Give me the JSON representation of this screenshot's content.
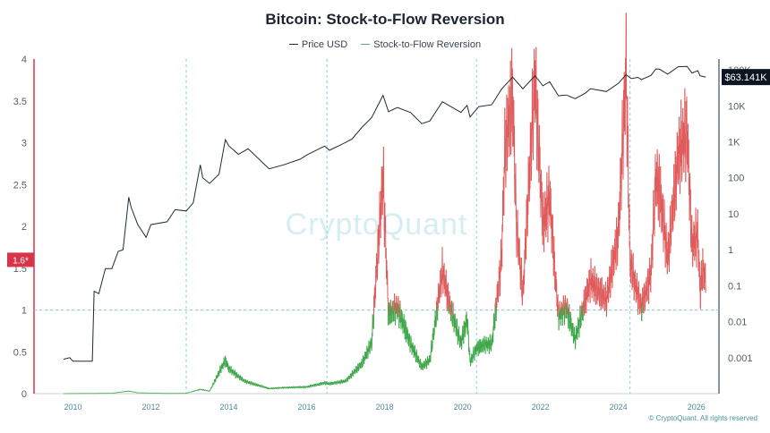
{
  "page": {
    "title": "Bitcoin: Stock-to-Flow Reversion",
    "footer": "© CryptoQuant. All rights reserved",
    "watermark": "CryptoQuant"
  },
  "legend": [
    {
      "label": "Price USD",
      "color": "#1d2b36"
    },
    {
      "label": "Stock-to-Flow Reversion",
      "color": "#5aa6a0"
    }
  ],
  "colors": {
    "price": "#1d2b36",
    "sf_above": "#e05c5c",
    "sf_below": "#3fa84a",
    "guide": "#86cfd8",
    "current_label_bg": "#0d1620",
    "marker_bg": "#d9344a",
    "watermark": "#d6eef2",
    "axis_text": "#555f66",
    "x_text": "#4d8a99"
  },
  "chart_data": {
    "type": "line",
    "title": "Bitcoin: Stock-to-Flow Reversion",
    "x_ticks": [
      "2010",
      "2012",
      "2014",
      "2016",
      "2018",
      "2020",
      "2022",
      "2024",
      "2026"
    ],
    "y_left": {
      "range": [
        0,
        4
      ],
      "ticks": [
        "0",
        "0.5",
        "1",
        "1.5",
        "2",
        "2.5",
        "3",
        "3.5",
        "4"
      ]
    },
    "y_right": {
      "scale": "log",
      "range": [
        0.0001,
        200000
      ],
      "ticks": [
        "0.001",
        "0.01",
        "0.1",
        "1",
        "10",
        "100",
        "1K",
        "10K",
        "100K"
      ]
    },
    "reference_line": 1,
    "marker_label": "1.6*",
    "current_price_label": "$63.141K",
    "halvings": [
      "2012-11-28",
      "2016-07-09",
      "2020-05-11",
      "2024-04-19"
    ],
    "series": [
      {
        "name": "Price USD",
        "axis": "right",
        "points": [
          [
            "2009-10-05",
            0.0009
          ],
          [
            "2009-12-01",
            0.001
          ],
          [
            "2010-01-01",
            0.0008
          ],
          [
            "2010-07-01",
            0.0008
          ],
          [
            "2010-07-18",
            0.07
          ],
          [
            "2010-09-01",
            0.06
          ],
          [
            "2010-11-01",
            0.3
          ],
          [
            "2011-01-01",
            0.3
          ],
          [
            "2011-03-01",
            0.9
          ],
          [
            "2011-04-15",
            1.0
          ],
          [
            "2011-06-08",
            29
          ],
          [
            "2011-07-01",
            15
          ],
          [
            "2011-09-01",
            5
          ],
          [
            "2011-11-18",
            2.2
          ],
          [
            "2012-01-01",
            5
          ],
          [
            "2012-06-01",
            6
          ],
          [
            "2012-08-16",
            13
          ],
          [
            "2012-11-28",
            12
          ],
          [
            "2013-02-01",
            20
          ],
          [
            "2013-04-09",
            230
          ],
          [
            "2013-05-01",
            100
          ],
          [
            "2013-07-05",
            70
          ],
          [
            "2013-10-01",
            125
          ],
          [
            "2013-11-30",
            1150
          ],
          [
            "2014-01-01",
            770
          ],
          [
            "2014-04-01",
            450
          ],
          [
            "2014-07-01",
            640
          ],
          [
            "2015-01-14",
            178
          ],
          [
            "2015-06-01",
            230
          ],
          [
            "2015-11-01",
            330
          ],
          [
            "2016-01-01",
            430
          ],
          [
            "2016-06-17",
            760
          ],
          [
            "2016-08-01",
            580
          ],
          [
            "2016-12-31",
            960
          ],
          [
            "2017-03-01",
            1200
          ],
          [
            "2017-06-01",
            2500
          ],
          [
            "2017-09-01",
            4700
          ],
          [
            "2017-12-17",
            19700
          ],
          [
            "2018-02-06",
            6900
          ],
          [
            "2018-05-01",
            9000
          ],
          [
            "2018-09-01",
            6500
          ],
          [
            "2018-12-15",
            3200
          ],
          [
            "2019-03-01",
            3800
          ],
          [
            "2019-06-26",
            13000
          ],
          [
            "2019-09-01",
            10000
          ],
          [
            "2019-12-17",
            6600
          ],
          [
            "2020-02-13",
            10300
          ],
          [
            "2020-03-12",
            4900
          ],
          [
            "2020-06-01",
            9500
          ],
          [
            "2020-10-01",
            10700
          ],
          [
            "2020-12-31",
            29000
          ],
          [
            "2021-04-14",
            63000
          ],
          [
            "2021-07-20",
            29800
          ],
          [
            "2021-11-10",
            69000
          ],
          [
            "2022-01-24",
            36000
          ],
          [
            "2022-03-28",
            47000
          ],
          [
            "2022-06-18",
            19000
          ],
          [
            "2022-09-01",
            20000
          ],
          [
            "2022-11-21",
            15800
          ],
          [
            "2023-03-01",
            23000
          ],
          [
            "2023-04-14",
            30000
          ],
          [
            "2023-09-11",
            25000
          ],
          [
            "2023-12-31",
            42000
          ],
          [
            "2024-03-14",
            73000
          ],
          [
            "2024-05-01",
            57000
          ],
          [
            "2024-07-01",
            62000
          ],
          [
            "2024-08-05",
            54000
          ],
          [
            "2024-11-01",
            70000
          ],
          [
            "2024-12-17",
            106000
          ],
          [
            "2025-01-20",
            105000
          ],
          [
            "2025-04-08",
            76000
          ],
          [
            "2025-07-14",
            122000
          ],
          [
            "2025-10-06",
            125000
          ],
          [
            "2025-11-21",
            82000
          ],
          [
            "2026-01-15",
            95000
          ],
          [
            "2026-02-05",
            68000
          ],
          [
            "2026-03-01",
            66000
          ],
          [
            "2026-03-31",
            63141
          ]
        ]
      },
      {
        "name": "Stock-to-Flow Reversion",
        "axis": "left",
        "points": [
          [
            "2009-10-05",
            0.0
          ],
          [
            "2011-01-01",
            0.005
          ],
          [
            "2011-06-08",
            0.03
          ],
          [
            "2011-09-01",
            0.01
          ],
          [
            "2012-06-01",
            0.003
          ],
          [
            "2012-11-28",
            0.004
          ],
          [
            "2013-04-09",
            0.05
          ],
          [
            "2013-07-05",
            0.03
          ],
          [
            "2013-11-30",
            0.4
          ],
          [
            "2014-01-01",
            0.3
          ],
          [
            "2014-06-01",
            0.15
          ],
          [
            "2015-01-14",
            0.06
          ],
          [
            "2015-06-01",
            0.07
          ],
          [
            "2016-01-01",
            0.08
          ],
          [
            "2016-06-17",
            0.13
          ],
          [
            "2016-08-01",
            0.12
          ],
          [
            "2016-12-31",
            0.15
          ],
          [
            "2017-06-01",
            0.35
          ],
          [
            "2017-09-01",
            0.6
          ],
          [
            "2017-12-17",
            2.62
          ],
          [
            "2018-02-06",
            0.95
          ],
          [
            "2018-05-01",
            1.05
          ],
          [
            "2018-09-01",
            0.6
          ],
          [
            "2018-12-15",
            0.32
          ],
          [
            "2019-03-01",
            0.4
          ],
          [
            "2019-06-26",
            1.45
          ],
          [
            "2019-09-01",
            1.05
          ],
          [
            "2019-12-17",
            0.6
          ],
          [
            "2020-02-13",
            0.9
          ],
          [
            "2020-03-12",
            0.38
          ],
          [
            "2020-05-11",
            0.55
          ],
          [
            "2020-08-01",
            0.6
          ],
          [
            "2020-10-01",
            0.6
          ],
          [
            "2020-12-31",
            1.6
          ],
          [
            "2021-02-01",
            2.9
          ],
          [
            "2021-04-14",
            3.55
          ],
          [
            "2021-05-20",
            2.0
          ],
          [
            "2021-07-20",
            1.15
          ],
          [
            "2021-09-01",
            2.2
          ],
          [
            "2021-11-10",
            3.75
          ],
          [
            "2022-01-24",
            2.0
          ],
          [
            "2022-03-28",
            2.4
          ],
          [
            "2022-05-15",
            1.5
          ],
          [
            "2022-06-18",
            0.95
          ],
          [
            "2022-09-01",
            1.05
          ],
          [
            "2022-11-21",
            0.65
          ],
          [
            "2023-01-01",
            0.85
          ],
          [
            "2023-04-14",
            1.35
          ],
          [
            "2023-06-01",
            1.25
          ],
          [
            "2023-09-11",
            1.1
          ],
          [
            "2023-12-31",
            1.9
          ],
          [
            "2024-03-14",
            3.9
          ],
          [
            "2024-04-19",
            1.6
          ],
          [
            "2024-06-01",
            1.35
          ],
          [
            "2024-08-05",
            1.05
          ],
          [
            "2024-11-01",
            1.45
          ],
          [
            "2024-12-17",
            2.6
          ],
          [
            "2025-01-20",
            2.45
          ],
          [
            "2025-04-08",
            1.6
          ],
          [
            "2025-07-14",
            2.8
          ],
          [
            "2025-10-06",
            3.1
          ],
          [
            "2025-11-21",
            1.75
          ],
          [
            "2026-01-15",
            1.9
          ],
          [
            "2026-02-05",
            1.2
          ],
          [
            "2026-03-01",
            1.5
          ],
          [
            "2026-03-31",
            1.35
          ]
        ]
      }
    ]
  }
}
